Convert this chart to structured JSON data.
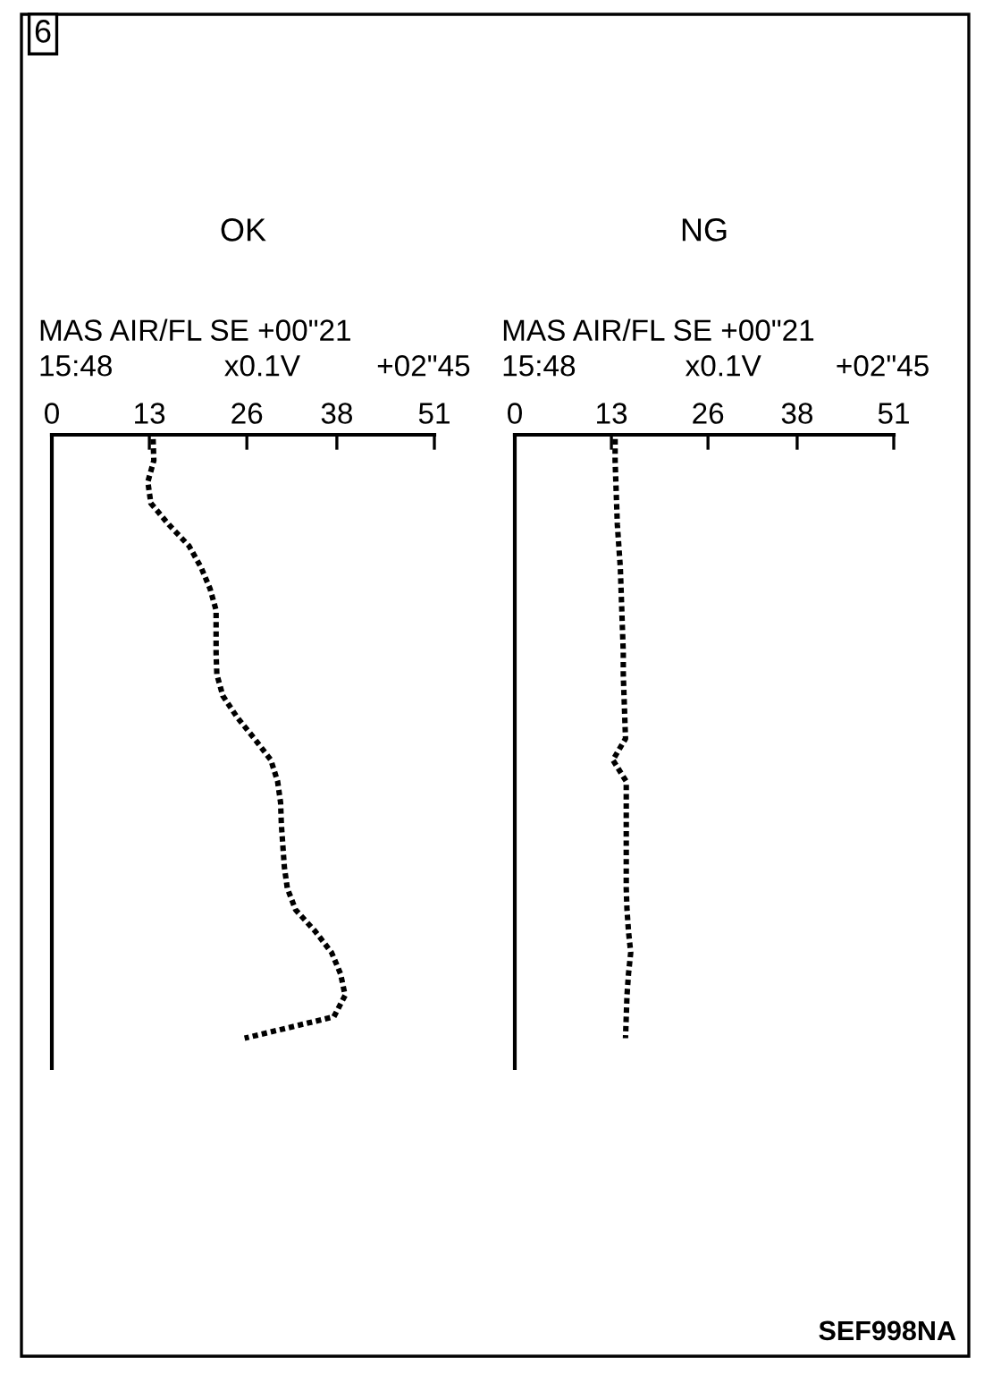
{
  "chart_data": [
    {
      "type": "line",
      "title": "OK",
      "orientation": "horizontal",
      "categories": [
        null,
        null,
        null,
        null,
        null,
        null,
        null,
        null,
        null,
        null,
        null,
        null,
        null,
        null,
        null,
        null,
        null,
        null,
        null,
        null,
        null,
        null,
        null,
        null,
        null,
        null,
        null,
        null,
        null
      ],
      "series": [
        {
          "color": "#000000",
          "values": [
            13.5,
            13.6,
            12.8,
            13.2,
            15.6,
            18.3,
            19.9,
            21.1,
            21.9,
            21.9,
            21.9,
            22.0,
            22.8,
            24.7,
            27.0,
            29.2,
            30.1,
            30.5,
            30.6,
            30.8,
            31.0,
            31.4,
            32.5,
            35.1,
            37.3,
            38.5,
            39.1,
            37.6,
            25.7
          ]
        }
      ],
      "xlim": [
        0,
        51
      ],
      "xticks": [
        0,
        13,
        26,
        38,
        51
      ],
      "tick_labels": "x",
      "line_style": "dotted",
      "marker": "none",
      "grid": false,
      "legend": false,
      "annotations": [
        "MAS AIR/FL SE +00\"21",
        "15:48",
        "x0.1V",
        "+02\"45",
        "6"
      ]
    },
    {
      "type": "line",
      "title": "NG",
      "orientation": "horizontal",
      "categories": [
        null,
        null,
        null,
        null,
        null,
        null,
        null,
        null,
        null,
        null,
        null,
        null,
        null,
        null,
        null,
        null,
        null,
        null,
        null,
        null,
        null,
        null,
        null,
        null,
        null,
        null,
        null,
        null,
        null
      ],
      "series": [
        {
          "color": "#000000",
          "values": [
            13.5,
            13.5,
            13.6,
            13.7,
            13.8,
            14.0,
            14.2,
            14.3,
            14.4,
            14.5,
            14.6,
            14.6,
            14.7,
            14.8,
            14.9,
            13.2,
            15.0,
            15.0,
            15.0,
            15.0,
            15.0,
            15.0,
            15.1,
            15.3,
            15.6,
            15.3,
            15.1,
            15.0,
            14.9
          ]
        }
      ],
      "xlim": [
        0,
        51
      ],
      "xticks": [
        0,
        13,
        26,
        38,
        51
      ],
      "tick_labels": "x",
      "line_style": "dotted",
      "marker": "none",
      "grid": false,
      "legend": false,
      "annotations": [
        "MAS AIR/FL SE +00\"21",
        "15:48",
        "x0.1V",
        "+02\"45",
        "SEF998NA"
      ]
    }
  ]
}
